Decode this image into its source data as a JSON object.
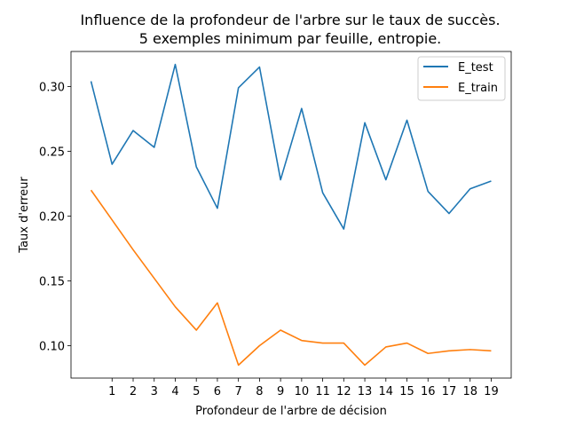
{
  "chart_data": {
    "type": "line",
    "title": "Influence de la profondeur de l'arbre sur le taux de succès.",
    "subtitle": "5 exemples minimum par feuille, entropie.",
    "xlabel": "Profondeur de l'arbre de décision",
    "ylabel": "Taux d'erreur",
    "xlim": [
      -0.95,
      19.95
    ],
    "ylim": [
      0.075,
      0.327
    ],
    "xticks": [
      1,
      2,
      3,
      4,
      5,
      6,
      7,
      8,
      9,
      10,
      11,
      12,
      13,
      14,
      15,
      16,
      17,
      18,
      19
    ],
    "yticks": [
      0.1,
      0.15,
      0.2,
      0.25,
      0.3
    ],
    "ytick_labels": [
      "0.10",
      "0.15",
      "0.20",
      "0.25",
      "0.30"
    ],
    "legend_position": "top-right",
    "grid": false,
    "x": [
      0,
      1,
      2,
      3,
      4,
      5,
      6,
      7,
      8,
      9,
      10,
      11,
      12,
      13,
      14,
      15,
      16,
      17,
      18,
      19
    ],
    "series": [
      {
        "name": "E_test",
        "color": "#1f77b4",
        "values": [
          0.304,
          0.24,
          0.266,
          0.253,
          0.317,
          0.238,
          0.206,
          0.299,
          0.315,
          0.228,
          0.283,
          0.218,
          0.19,
          0.272,
          0.228,
          0.274,
          0.219,
          0.202,
          0.221,
          0.227
        ]
      },
      {
        "name": "E_train",
        "color": "#ff7f0e",
        "values": [
          0.22,
          0.197,
          0.174,
          0.152,
          0.13,
          0.112,
          0.133,
          0.085,
          0.1,
          0.112,
          0.104,
          0.102,
          0.102,
          0.085,
          0.099,
          0.102,
          0.094,
          0.096,
          0.097,
          0.096
        ]
      }
    ]
  }
}
